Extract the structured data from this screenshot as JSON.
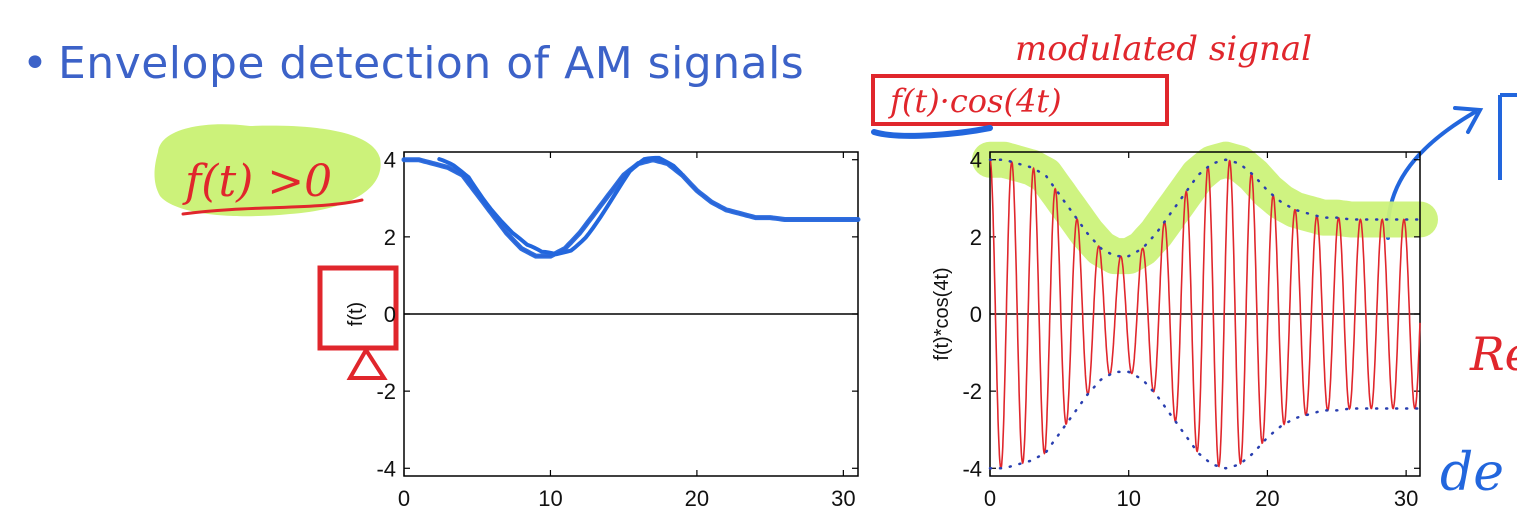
{
  "slide": {
    "bullet": "•",
    "title": "Envelope detection of AM signals"
  },
  "annotations": {
    "condition": "f(t) >0",
    "modulated_label": "modulated signal",
    "product_formula": "f(t)·cos(4t)",
    "partial_right_1": "Re",
    "partial_right_2": "de",
    "colors": {
      "red_ink": "#e0262c",
      "blue_ink": "#2266dd",
      "highlight": "#ccf27a"
    }
  },
  "chart_data": [
    {
      "type": "line",
      "ylabel": "f(t)",
      "xlim": [
        0,
        31
      ],
      "ylim": [
        -4.2,
        4.2
      ],
      "xticks": [
        "0",
        "10",
        "20",
        "30"
      ],
      "yticks": [
        "4",
        "2",
        "0",
        "-2",
        "-4"
      ],
      "series": [
        {
          "x": [
            0,
            1,
            2,
            3,
            4,
            5,
            6,
            7,
            8,
            9,
            10,
            11,
            12,
            13,
            14,
            15,
            16,
            17,
            18,
            19,
            20,
            21,
            22,
            23,
            24,
            25,
            26,
            27,
            28,
            29,
            30,
            31
          ],
          "values": [
            4.0,
            4.0,
            3.9,
            3.8,
            3.6,
            3.1,
            2.6,
            2.1,
            1.7,
            1.5,
            1.5,
            1.7,
            2.1,
            2.6,
            3.1,
            3.6,
            3.9,
            4.0,
            3.9,
            3.6,
            3.2,
            2.9,
            2.7,
            2.6,
            2.5,
            2.5,
            2.45,
            2.45,
            2.45,
            2.45,
            2.45,
            2.45
          ]
        }
      ]
    },
    {
      "type": "line",
      "ylabel": "f(t)*cos(4t)",
      "xlim": [
        0,
        31
      ],
      "ylim": [
        -4.2,
        4.2
      ],
      "xticks": [
        "0",
        "10",
        "20",
        "30"
      ],
      "yticks": [
        "4",
        "2",
        "0",
        "-2",
        "-4"
      ],
      "carrier_frequency": 4,
      "envelope_x": [
        0,
        1,
        2,
        3,
        4,
        5,
        6,
        7,
        8,
        9,
        10,
        11,
        12,
        13,
        14,
        15,
        16,
        17,
        18,
        19,
        20,
        21,
        22,
        23,
        24,
        25,
        26,
        27,
        28,
        29,
        30,
        31
      ],
      "envelope_values": [
        4.0,
        4.0,
        3.9,
        3.8,
        3.6,
        3.1,
        2.6,
        2.1,
        1.7,
        1.5,
        1.5,
        1.7,
        2.1,
        2.6,
        3.1,
        3.6,
        3.9,
        4.0,
        3.9,
        3.6,
        3.2,
        2.9,
        2.7,
        2.6,
        2.5,
        2.5,
        2.45,
        2.45,
        2.45,
        2.45,
        2.45,
        2.45
      ]
    }
  ]
}
